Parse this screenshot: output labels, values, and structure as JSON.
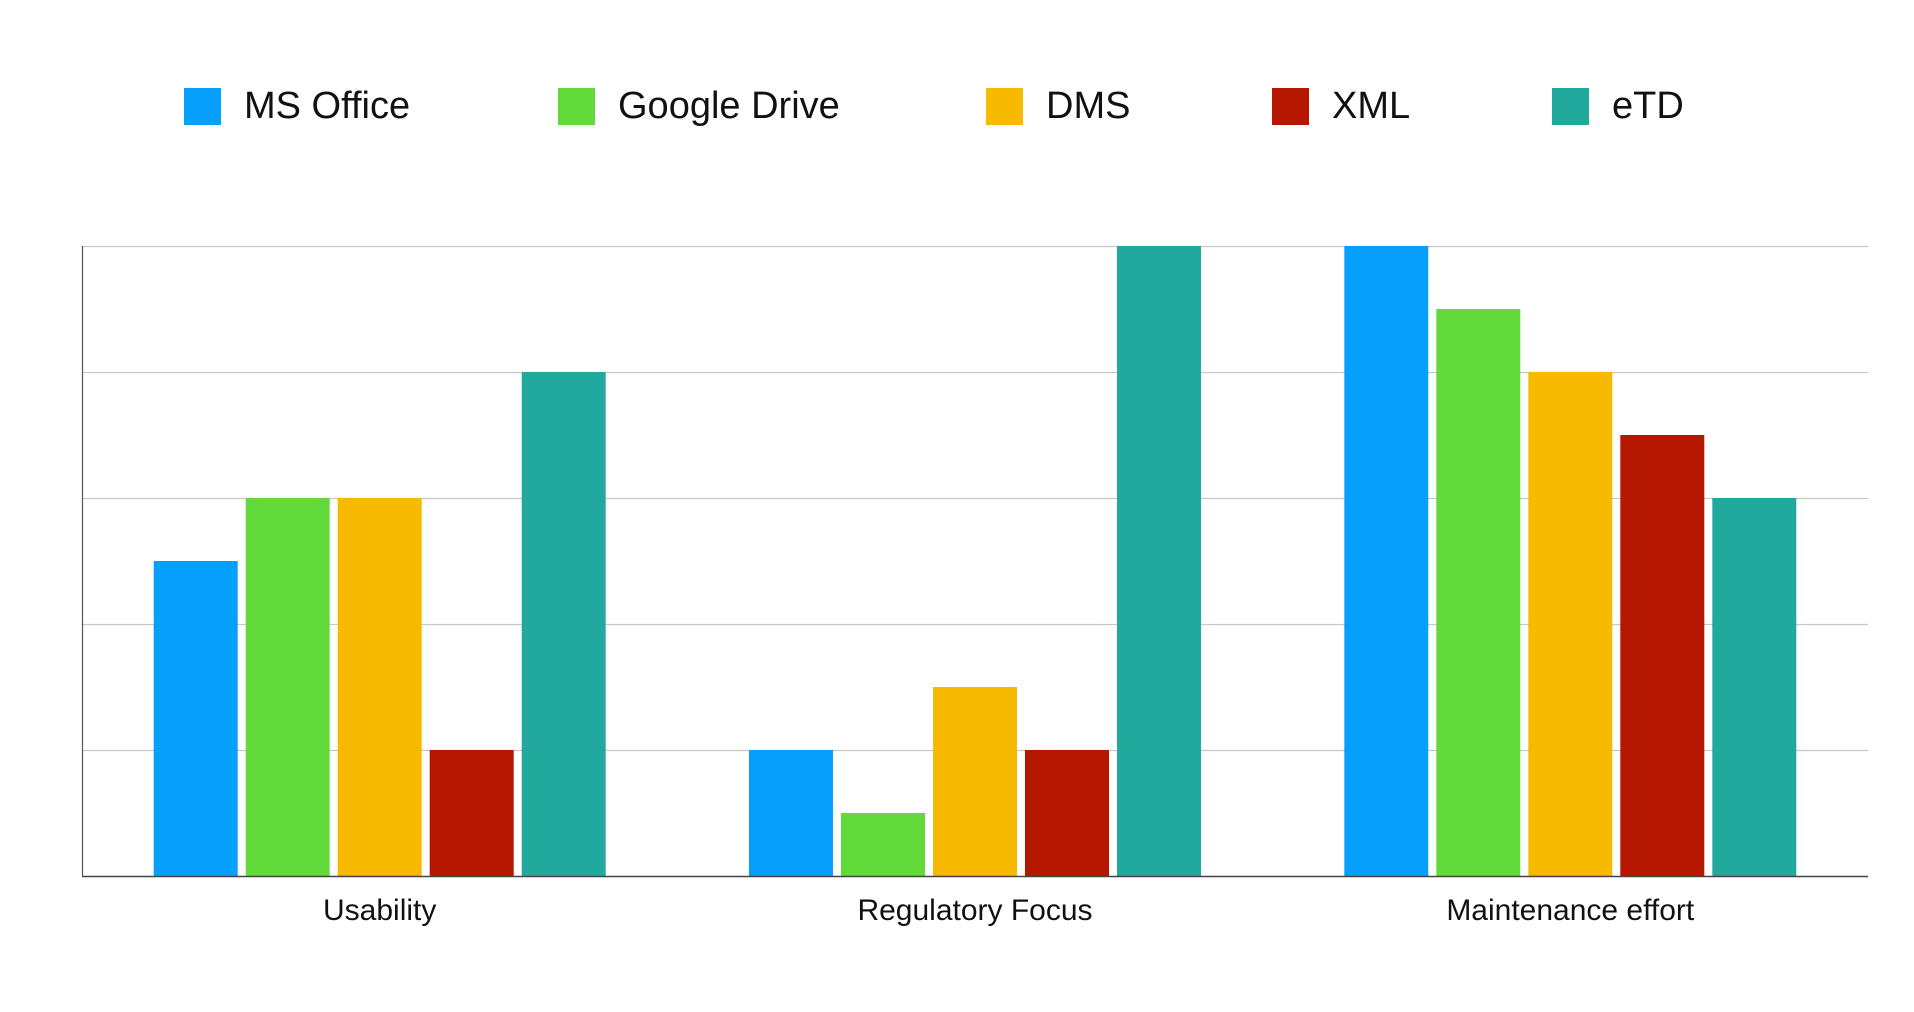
{
  "chart_data": {
    "type": "bar",
    "title": "",
    "xlabel": "",
    "ylabel": "",
    "categories": [
      "Usability",
      "Regulatory Focus",
      "Maintenance effort"
    ],
    "ylim": [
      0,
      10
    ],
    "y_gridlines": [
      2,
      4,
      6,
      8,
      10
    ],
    "y_tick_labels_shown": false,
    "grid": true,
    "legend_position": "top",
    "series": [
      {
        "name": "MS Office",
        "color": "#069FFC",
        "values": [
          5,
          2,
          10
        ]
      },
      {
        "name": "Google Drive",
        "color": "#61DA3A",
        "values": [
          6,
          1,
          9
        ]
      },
      {
        "name": "DMS",
        "color": "#F8BA00",
        "values": [
          6,
          3,
          8
        ]
      },
      {
        "name": "XML",
        "color": "#B51700",
        "values": [
          2,
          2,
          7
        ]
      },
      {
        "name": "eTD",
        "color": "#22A99E",
        "values": [
          8,
          10,
          6
        ]
      }
    ]
  }
}
